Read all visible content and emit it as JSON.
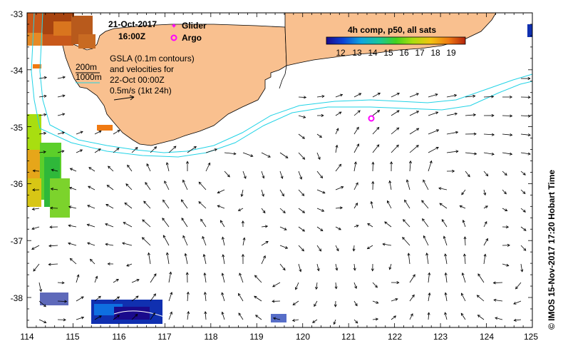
{
  "map": {
    "date": "21-Oct-2017",
    "time": "16:00Z",
    "legend_glider": "Glider",
    "legend_argo": "Argo",
    "gsla_lines": [
      "GSLA (0.1m contours)",
      "and velocities for",
      "22-Oct 00:00Z",
      "0.5m/s (1kt 24h)"
    ],
    "depth_labels": [
      "200m",
      "1000m"
    ],
    "colorbar_title": "4h comp, p50, all sats",
    "colorbar_ticks": [
      "12",
      "13",
      "14",
      "15",
      "16",
      "17",
      "18",
      "19"
    ],
    "credit": "© IMOS 15-Nov-2017 17:20 Hobart Time",
    "lon_ticks": [
      "114",
      "115",
      "116",
      "117",
      "118",
      "119",
      "120",
      "121",
      "122",
      "123",
      "124",
      "125"
    ],
    "lat_ticks": [
      "-33",
      "-34",
      "-35",
      "-36",
      "-37",
      "-38"
    ],
    "colors": {
      "land": "#f9c08f",
      "contour": "#22d3e6",
      "argo": "#ff00ff",
      "colorbar": [
        "#1a0a8c",
        "#0b42d6",
        "#0ea5e0",
        "#19c79a",
        "#43d21f",
        "#a8de10",
        "#f2c40f",
        "#f07a12",
        "#b3240c"
      ]
    }
  }
}
